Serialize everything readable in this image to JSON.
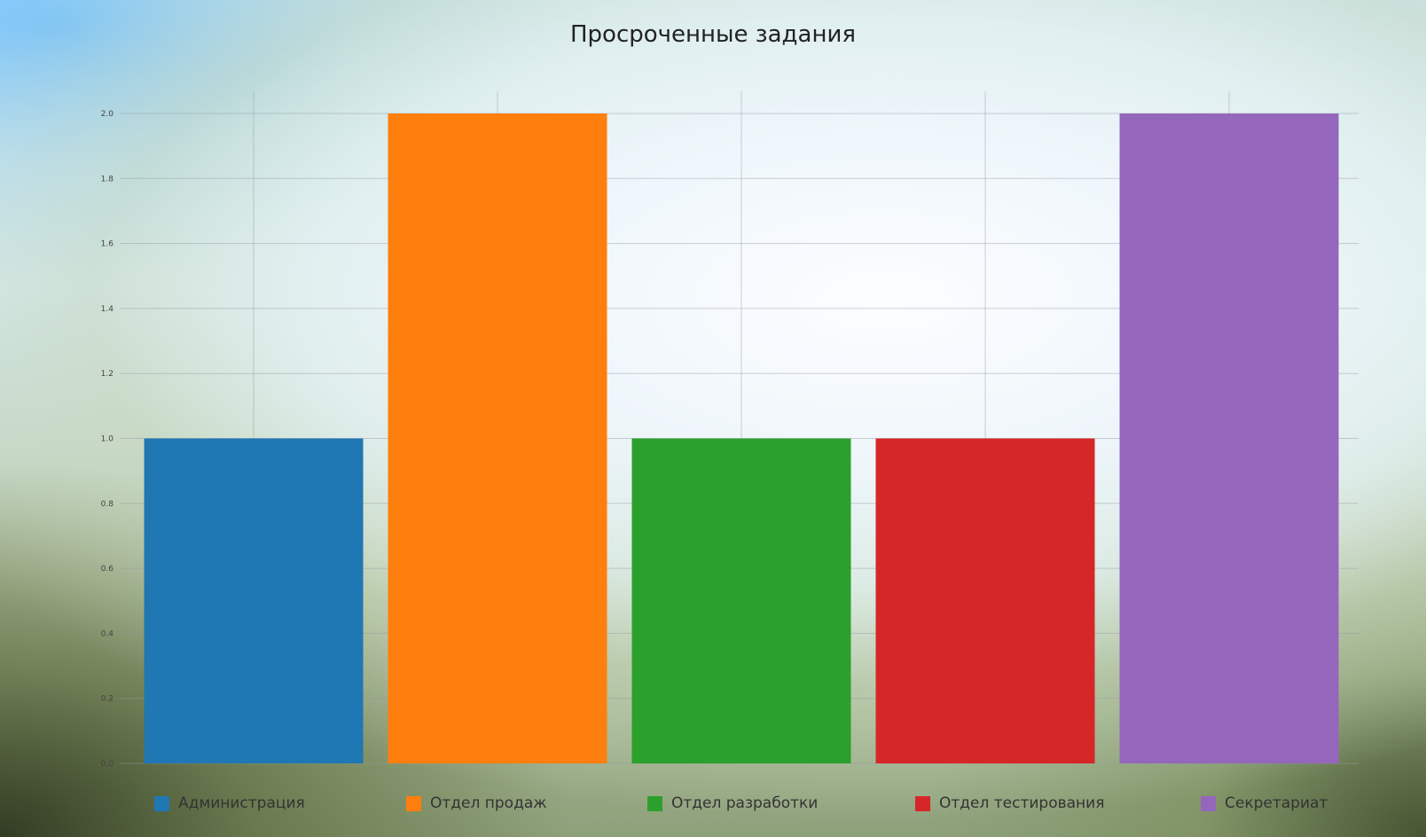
{
  "chart_data": {
    "type": "bar",
    "title": "Просроченные задания",
    "xlabel": "",
    "ylabel": "",
    "categories": [
      "Администрация",
      "Отдел продаж",
      "Отдел разработки",
      "Отдел тестирования",
      "Секретариат"
    ],
    "values": [
      1,
      2,
      1,
      1,
      2
    ],
    "colors": [
      "#1f77b4",
      "#ff7f0e",
      "#2ca02c",
      "#d62728",
      "#9467bd"
    ],
    "ylim": [
      0,
      2
    ],
    "yticks": [
      "0.0",
      "0.2",
      "0.4",
      "0.6",
      "0.8",
      "1.0",
      "1.2",
      "1.4",
      "1.6",
      "1.8",
      "2.0"
    ],
    "grid": true,
    "legend": "bottom"
  }
}
